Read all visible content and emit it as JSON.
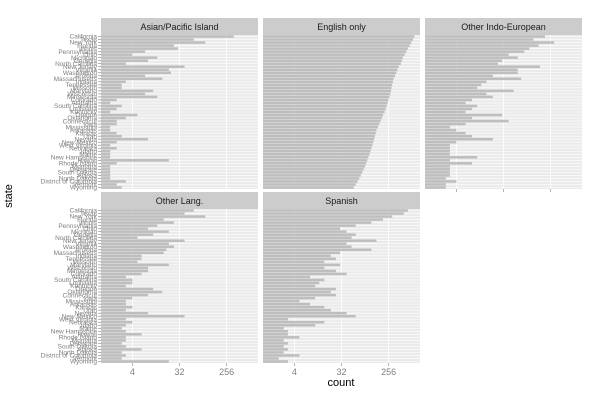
{
  "chart_data": {
    "type": "bar",
    "orientation": "horizontal",
    "facet_layout": "3 columns x 2 rows",
    "xlabel": "count",
    "ylabel": "state",
    "x_scale": "log2",
    "x_ticks": [
      4,
      32,
      256
    ],
    "x_tick_labels": [
      "4",
      "32",
      "256"
    ],
    "xlim": [
      1,
      1024
    ],
    "grid": true,
    "colors": {
      "bar": "#bebebe",
      "panel": "#ebebeb",
      "strip": "#cccccc",
      "grid": "#ffffff"
    },
    "tick_labels_shown": [
      "California",
      "Texas",
      "New York",
      "Florida",
      "Illinois",
      "Pennsylvania",
      "Ohio",
      "Michigan",
      "Georgia",
      "North Carolina",
      "New Jersey",
      "Virginia",
      "Washington",
      "Arizona",
      "Massachusetts",
      "Indiana",
      "Tennessee",
      "Missouri",
      "Maryland",
      "Wisconsin",
      "Minnesota",
      "Colorado",
      "Alabama",
      "South Carolina",
      "Louisiana",
      "Kentucky",
      "Oregon",
      "Oklahoma",
      "Connecticut",
      "Iowa",
      "Mississippi",
      "Arkansas",
      "Kansas",
      "Utah",
      "Nevada",
      "New Mexico",
      "West Virginia",
      "Nebraska",
      "Idaho",
      "Maine",
      "New Hampshire",
      "Hawaii",
      "Rhode Island",
      "Montana",
      "Delaware",
      "South Dakota",
      "Alaska",
      "North Dakota",
      "District of Columbia",
      "Vermont",
      "Wyoming"
    ],
    "states": [
      "California",
      "Texas",
      "New York",
      "Florida",
      "Illinois",
      "Pennsylvania",
      "Ohio",
      "Michigan",
      "Georgia",
      "North Carolina",
      "New Jersey",
      "Virginia",
      "Washington",
      "Arizona",
      "Massachusetts",
      "Indiana",
      "Tennessee",
      "Missouri",
      "Maryland",
      "Wisconsin",
      "Minnesota",
      "Colorado",
      "Alabama",
      "South Carolina",
      "Louisiana",
      "Kentucky",
      "Oregon",
      "Oklahoma",
      "Connecticut",
      "Iowa",
      "Mississippi",
      "Arkansas",
      "Kansas",
      "Utah",
      "Nevada",
      "New Mexico",
      "West Virginia",
      "Nebraska",
      "Idaho",
      "Maine",
      "New Hampshire",
      "Hawaii",
      "Rhode Island",
      "Montana",
      "Delaware",
      "South Dakota",
      "Alaska",
      "North Dakota",
      "District of Columbia",
      "Vermont",
      "Wyoming"
    ],
    "panels": [
      {
        "title": "Asian/Pacific Island",
        "values": [
          350,
          60,
          100,
          25,
          30,
          7,
          4,
          12,
          8,
          3,
          40,
          20,
          22,
          7,
          15,
          3,
          2.5,
          2.5,
          10,
          7,
          12,
          2,
          1.5,
          2.5,
          2,
          1.5,
          5,
          3,
          2,
          2,
          1.5,
          1.5,
          2,
          2.5,
          8,
          2,
          1.5,
          2,
          1.5,
          1.5,
          1.5,
          20,
          2,
          1.5,
          1.5,
          1.5,
          1.5,
          1.5,
          3,
          2,
          2.5
        ]
      },
      {
        "title": "English only",
        "values": [
          800,
          750,
          700,
          650,
          600,
          560,
          520,
          480,
          460,
          440,
          400,
          380,
          360,
          340,
          320,
          310,
          300,
          290,
          285,
          275,
          265,
          255,
          245,
          235,
          225,
          215,
          200,
          190,
          180,
          170,
          160,
          150,
          145,
          140,
          135,
          130,
          125,
          120,
          115,
          110,
          105,
          100,
          95,
          90,
          85,
          80,
          75,
          70,
          65,
          60,
          55
        ]
      },
      {
        "title": "Other Indo-European",
        "values": [
          200,
          120,
          300,
          150,
          100,
          80,
          40,
          60,
          30,
          25,
          160,
          60,
          60,
          20,
          70,
          15,
          12,
          10,
          50,
          15,
          20,
          8,
          6,
          10,
          8,
          6,
          30,
          8,
          40,
          6,
          3,
          4,
          6,
          8,
          20,
          4,
          3,
          3,
          3,
          3,
          10,
          3,
          8,
          3,
          3,
          3,
          3,
          2.5,
          4,
          2.5,
          2.5
        ]
      },
      {
        "title": "Other Lang.",
        "values": [
          60,
          40,
          100,
          16,
          25,
          12,
          8,
          20,
          10,
          5,
          40,
          20,
          25,
          18,
          16,
          6,
          6,
          5,
          20,
          8,
          8,
          6,
          3,
          4,
          4,
          3,
          10,
          15,
          8,
          4,
          3,
          3,
          4,
          3,
          8,
          40,
          3,
          4,
          3,
          2.5,
          3,
          6,
          3,
          3,
          2.5,
          3,
          6,
          2.5,
          3,
          2.5,
          20
        ]
      },
      {
        "title": "Spanish",
        "values": [
          600,
          500,
          300,
          200,
          120,
          60,
          30,
          40,
          60,
          50,
          150,
          40,
          50,
          120,
          30,
          20,
          25,
          15,
          30,
          15,
          25,
          40,
          8,
          15,
          12,
          10,
          25,
          20,
          25,
          10,
          5,
          8,
          15,
          20,
          40,
          60,
          3,
          15,
          10,
          2.5,
          3,
          3,
          5,
          2.5,
          3,
          2.5,
          3,
          2.5,
          5,
          2,
          3
        ]
      }
    ]
  }
}
